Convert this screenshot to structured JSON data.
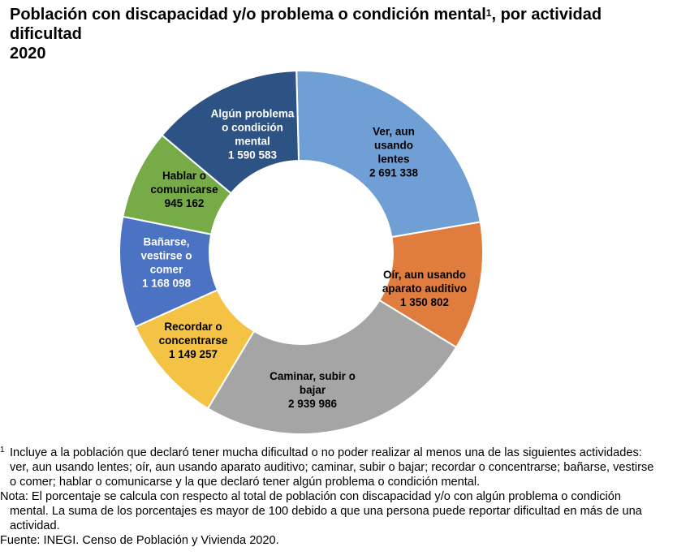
{
  "title": {
    "line1_main": "Población con discapacidad y/o problema o condición mental",
    "line1_sup": "1",
    "line1_tail": ", por actividad",
    "line2": "dificultad",
    "line3": "2020"
  },
  "chart_data": {
    "type": "pie",
    "donut": true,
    "title": "Población con discapacidad y/o problema o condición mental, por actividad dificultad 2020",
    "slices": [
      {
        "label_lines": [
          "Ver, aun",
          "usando",
          "lentes"
        ],
        "value_text": "2 691 338",
        "value": 2691338,
        "color": "#6f9fd4",
        "label_color": "#000000"
      },
      {
        "label_lines": [
          "Oír, aun usando",
          "aparato auditivo"
        ],
        "value_text": "1 350 802",
        "value": 1350802,
        "color": "#e07c3e",
        "label_color": "#000000"
      },
      {
        "label_lines": [
          "Caminar, subir o",
          "bajar"
        ],
        "value_text": "2 939 986",
        "value": 2939986,
        "color": "#a5a5a5",
        "label_color": "#000000"
      },
      {
        "label_lines": [
          "Recordar o",
          "concentrarse"
        ],
        "value_text": "1 149 257",
        "value": 1149257,
        "color": "#f4c244",
        "label_color": "#000000"
      },
      {
        "label_lines": [
          "Bañarse,",
          "vestirse o",
          "comer"
        ],
        "value_text": "1 168 098",
        "value": 1168098,
        "color": "#4c72c4",
        "label_color": "#ffffff"
      },
      {
        "label_lines": [
          "Hablar o",
          "comunicarse"
        ],
        "value_text": "945 162",
        "value": 945162,
        "color": "#77ab48",
        "label_color": "#000000"
      },
      {
        "label_lines": [
          "Algún problema",
          "o condición",
          "mental"
        ],
        "value_text": "1 590 583",
        "value": 1590583,
        "color": "#2d5384",
        "label_color": "#ffffff"
      }
    ]
  },
  "notes": {
    "footnote_mark": "1",
    "footnote_line1": "Incluye a la población que declaró tener mucha dificultad o no poder realizar al menos una de las siguientes actividades:",
    "footnote_line2": "ver, aun usando lentes; oír, aun usando aparato auditivo; caminar, subir o bajar; recordar o concentrarse; bañarse, vestirse",
    "footnote_line3": "o comer; hablar o comunicarse y la que declaró tener algún problema o condición mental.",
    "nota_line1": "Nota: El porcentaje se calcula con respecto al total de población con discapacidad y/o con algún problema o condición",
    "nota_line2": "mental. La suma de los porcentajes es mayor de 100 debido a que una persona puede reportar dificultad en más de una",
    "nota_line3": "actividad.",
    "source": "Fuente: INEGI. Censo de Población y Vivienda 2020."
  }
}
